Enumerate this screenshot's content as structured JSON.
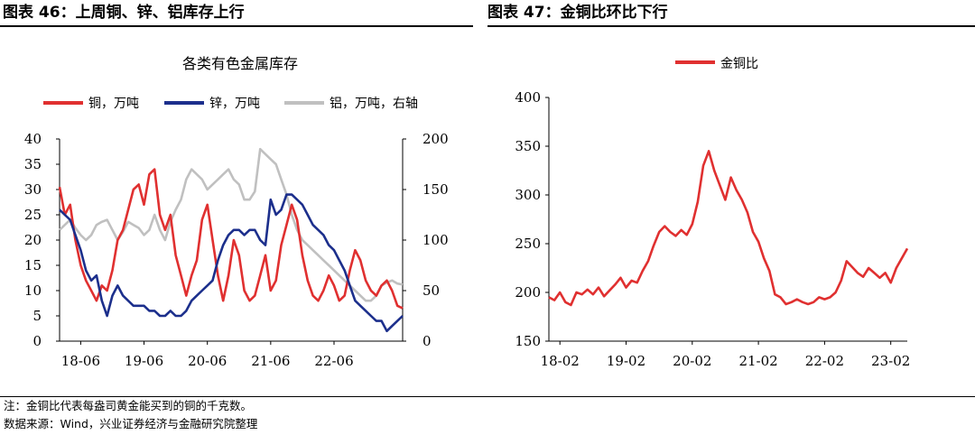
{
  "headers": {
    "left": "图表 46：上周铜、锌、铝库存上行",
    "right": "图表 47：金铜比环比下行"
  },
  "footer": {
    "note": "注：金铜比代表每盎司黄金能买到的铜的千克数。",
    "source": "数据来源：Wind，兴业证券经济与金融研究院整理"
  },
  "colors": {
    "copper": "#e03030",
    "zinc": "#1c2f8c",
    "aluminum": "#c0c0c0",
    "ratio": "#e03030"
  },
  "chart_data": [
    {
      "type": "line",
      "title": "各类有色金属库存",
      "x_ticks": [
        "18-06",
        "19-06",
        "20-06",
        "21-06",
        "22-06"
      ],
      "x_range": [
        "2018-02",
        "2023-06"
      ],
      "y_left": {
        "ticks": [
          0,
          5,
          10,
          15,
          20,
          25,
          30,
          35,
          40
        ],
        "range": [
          0,
          40
        ]
      },
      "y_right": {
        "ticks": [
          0,
          50,
          100,
          150,
          200
        ],
        "range": [
          0,
          200
        ]
      },
      "grid": false,
      "legend_position": "top",
      "series": [
        {
          "name": "铜，万吨",
          "axis": "left",
          "color_key": "copper",
          "points": [
            [
              0,
              30.5
            ],
            [
              1,
              25
            ],
            [
              2,
              27
            ],
            [
              3,
              20
            ],
            [
              4,
              15
            ],
            [
              5,
              12
            ],
            [
              6,
              10
            ],
            [
              7,
              8
            ],
            [
              8,
              11
            ],
            [
              9,
              10
            ],
            [
              10,
              14
            ],
            [
              11,
              20
            ],
            [
              12,
              22
            ],
            [
              13,
              26
            ],
            [
              14,
              30
            ],
            [
              15,
              31
            ],
            [
              16,
              27
            ],
            [
              17,
              33
            ],
            [
              18,
              34
            ],
            [
              19,
              25
            ],
            [
              20,
              22
            ],
            [
              21,
              25
            ],
            [
              22,
              17
            ],
            [
              23,
              13
            ],
            [
              24,
              9
            ],
            [
              25,
              13
            ],
            [
              26,
              16
            ],
            [
              27,
              24
            ],
            [
              28,
              27
            ],
            [
              29,
              20
            ],
            [
              30,
              13
            ],
            [
              31,
              8
            ],
            [
              32,
              13
            ],
            [
              33,
              20
            ],
            [
              34,
              17
            ],
            [
              35,
              10
            ],
            [
              36,
              8
            ],
            [
              37,
              9
            ],
            [
              38,
              13
            ],
            [
              39,
              17
            ],
            [
              40,
              10
            ],
            [
              41,
              12
            ],
            [
              42,
              19
            ],
            [
              43,
              23
            ],
            [
              44,
              27
            ],
            [
              45,
              24
            ],
            [
              46,
              17
            ],
            [
              47,
              12
            ],
            [
              48,
              9
            ],
            [
              49,
              8
            ],
            [
              50,
              10
            ],
            [
              51,
              13
            ],
            [
              52,
              11
            ],
            [
              53,
              8
            ],
            [
              54,
              9
            ],
            [
              55,
              14
            ],
            [
              56,
              18
            ],
            [
              57,
              16
            ],
            [
              58,
              12
            ],
            [
              59,
              10
            ],
            [
              60,
              9
            ],
            [
              61,
              11
            ],
            [
              62,
              12
            ],
            [
              63,
              10
            ],
            [
              64,
              7
            ],
            [
              65,
              6.5
            ]
          ]
        },
        {
          "name": "锌，万吨",
          "axis": "left",
          "color_key": "zinc",
          "points": [
            [
              0,
              26
            ],
            [
              1,
              25
            ],
            [
              2,
              24
            ],
            [
              3,
              21
            ],
            [
              4,
              18
            ],
            [
              5,
              14
            ],
            [
              6,
              12
            ],
            [
              7,
              13
            ],
            [
              8,
              8
            ],
            [
              9,
              5
            ],
            [
              10,
              9
            ],
            [
              11,
              11
            ],
            [
              12,
              9
            ],
            [
              13,
              8
            ],
            [
              14,
              7
            ],
            [
              15,
              7
            ],
            [
              16,
              7
            ],
            [
              17,
              6
            ],
            [
              18,
              6
            ],
            [
              19,
              5
            ],
            [
              20,
              5
            ],
            [
              21,
              6
            ],
            [
              22,
              5
            ],
            [
              23,
              5
            ],
            [
              24,
              6
            ],
            [
              25,
              8
            ],
            [
              26,
              9
            ],
            [
              27,
              10
            ],
            [
              28,
              11
            ],
            [
              29,
              12
            ],
            [
              30,
              16
            ],
            [
              31,
              19
            ],
            [
              32,
              21
            ],
            [
              33,
              22
            ],
            [
              34,
              22
            ],
            [
              35,
              21
            ],
            [
              36,
              22
            ],
            [
              37,
              22
            ],
            [
              38,
              20
            ],
            [
              39,
              19
            ],
            [
              40,
              28
            ],
            [
              41,
              25
            ],
            [
              42,
              26
            ],
            [
              43,
              29
            ],
            [
              44,
              29
            ],
            [
              45,
              28
            ],
            [
              46,
              27
            ],
            [
              47,
              25
            ],
            [
              48,
              23
            ],
            [
              49,
              22
            ],
            [
              50,
              21
            ],
            [
              51,
              19
            ],
            [
              52,
              18
            ],
            [
              53,
              16
            ],
            [
              54,
              14
            ],
            [
              55,
              11
            ],
            [
              56,
              8
            ],
            [
              57,
              7
            ],
            [
              58,
              6
            ],
            [
              59,
              5
            ],
            [
              60,
              4
            ],
            [
              61,
              4
            ],
            [
              62,
              2
            ],
            [
              63,
              3
            ],
            [
              64,
              4
            ],
            [
              65,
              5
            ]
          ]
        },
        {
          "name": "铝，万吨，右轴",
          "axis": "right",
          "color_key": "aluminum",
          "points": [
            [
              0,
              110
            ],
            [
              1,
              115
            ],
            [
              2,
              120
            ],
            [
              3,
              112
            ],
            [
              4,
              105
            ],
            [
              5,
              100
            ],
            [
              6,
              105
            ],
            [
              7,
              115
            ],
            [
              8,
              118
            ],
            [
              9,
              120
            ],
            [
              10,
              110
            ],
            [
              11,
              100
            ],
            [
              12,
              108
            ],
            [
              13,
              118
            ],
            [
              14,
              115
            ],
            [
              15,
              112
            ],
            [
              16,
              105
            ],
            [
              17,
              110
            ],
            [
              18,
              125
            ],
            [
              19,
              110
            ],
            [
              20,
              100
            ],
            [
              21,
              118
            ],
            [
              22,
              130
            ],
            [
              23,
              140
            ],
            [
              24,
              160
            ],
            [
              25,
              170
            ],
            [
              26,
              165
            ],
            [
              27,
              160
            ],
            [
              28,
              150
            ],
            [
              29,
              155
            ],
            [
              30,
              160
            ],
            [
              31,
              165
            ],
            [
              32,
              170
            ],
            [
              33,
              160
            ],
            [
              34,
              155
            ],
            [
              35,
              140
            ],
            [
              36,
              140
            ],
            [
              37,
              148
            ],
            [
              38,
              190
            ],
            [
              39,
              185
            ],
            [
              40,
              180
            ],
            [
              41,
              175
            ],
            [
              42,
              160
            ],
            [
              43,
              145
            ],
            [
              44,
              125
            ],
            [
              45,
              110
            ],
            [
              46,
              100
            ],
            [
              47,
              95
            ],
            [
              48,
              90
            ],
            [
              49,
              85
            ],
            [
              50,
              80
            ],
            [
              51,
              75
            ],
            [
              52,
              70
            ],
            [
              53,
              65
            ],
            [
              54,
              60
            ],
            [
              55,
              55
            ],
            [
              56,
              50
            ],
            [
              57,
              45
            ],
            [
              58,
              40
            ],
            [
              59,
              40
            ],
            [
              60,
              45
            ],
            [
              61,
              55
            ],
            [
              62,
              58
            ],
            [
              63,
              60
            ],
            [
              64,
              57
            ],
            [
              65,
              56
            ]
          ]
        }
      ]
    },
    {
      "type": "line",
      "x_ticks": [
        "18-02",
        "19-02",
        "20-02",
        "21-02",
        "22-02",
        "23-02"
      ],
      "x_range": [
        "2017-12",
        "2023-06"
      ],
      "y": {
        "ticks": [
          150,
          200,
          250,
          300,
          350,
          400
        ],
        "range": [
          150,
          400
        ]
      },
      "grid": false,
      "legend_position": "top",
      "series": [
        {
          "name": "金铜比",
          "color_key": "ratio",
          "points": [
            [
              0,
              195
            ],
            [
              1,
              192
            ],
            [
              2,
              200
            ],
            [
              3,
              190
            ],
            [
              4,
              187
            ],
            [
              5,
              200
            ],
            [
              6,
              198
            ],
            [
              7,
              203
            ],
            [
              8,
              198
            ],
            [
              9,
              205
            ],
            [
              10,
              196
            ],
            [
              11,
              202
            ],
            [
              12,
              208
            ],
            [
              13,
              215
            ],
            [
              14,
              205
            ],
            [
              15,
              212
            ],
            [
              16,
              210
            ],
            [
              17,
              222
            ],
            [
              18,
              232
            ],
            [
              19,
              248
            ],
            [
              20,
              262
            ],
            [
              21,
              268
            ],
            [
              22,
              262
            ],
            [
              23,
              258
            ],
            [
              24,
              264
            ],
            [
              25,
              259
            ],
            [
              26,
              270
            ],
            [
              27,
              293
            ],
            [
              28,
              330
            ],
            [
              29,
              345
            ],
            [
              30,
              325
            ],
            [
              31,
              310
            ],
            [
              32,
              295
            ],
            [
              33,
              318
            ],
            [
              34,
              305
            ],
            [
              35,
              295
            ],
            [
              36,
              282
            ],
            [
              37,
              262
            ],
            [
              38,
              252
            ],
            [
              39,
              235
            ],
            [
              40,
              222
            ],
            [
              41,
              198
            ],
            [
              42,
              195
            ],
            [
              43,
              188
            ],
            [
              44,
              190
            ],
            [
              45,
              193
            ],
            [
              46,
              190
            ],
            [
              47,
              188
            ],
            [
              48,
              190
            ],
            [
              49,
              195
            ],
            [
              50,
              193
            ],
            [
              51,
              195
            ],
            [
              52,
              200
            ],
            [
              53,
              212
            ],
            [
              54,
              232
            ],
            [
              55,
              226
            ],
            [
              56,
              220
            ],
            [
              57,
              216
            ],
            [
              58,
              225
            ],
            [
              59,
              220
            ],
            [
              60,
              215
            ],
            [
              61,
              220
            ],
            [
              62,
              210
            ],
            [
              63,
              225
            ],
            [
              64,
              235
            ],
            [
              65,
              245
            ]
          ]
        }
      ]
    }
  ]
}
